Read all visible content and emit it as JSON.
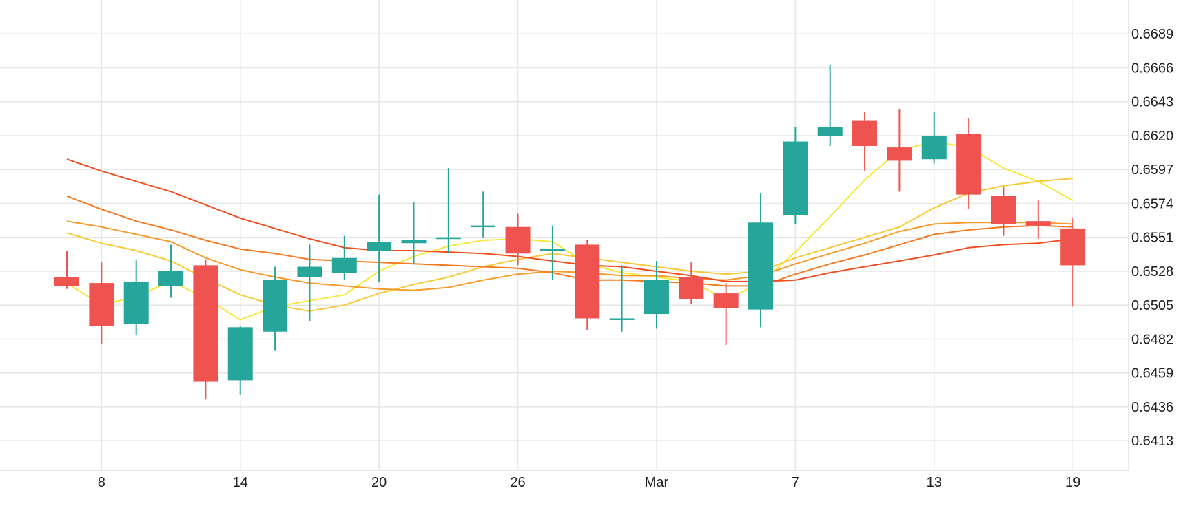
{
  "chart_data": {
    "type": "candlestick",
    "title": "",
    "xlabel": "",
    "ylabel": "",
    "ylim": [
      0.6393,
      0.6712
    ],
    "y_ticks": [
      0.6413,
      0.6436,
      0.6459,
      0.6482,
      0.6505,
      0.6528,
      0.6551,
      0.6574,
      0.6597,
      0.662,
      0.6643,
      0.6666,
      0.6689
    ],
    "y_tick_labels": [
      "0.6413",
      "0.6436",
      "0.6459",
      "0.6482",
      "0.6505",
      "0.6528",
      "0.6551",
      "0.6574",
      "0.6597",
      "0.6620",
      "0.6643",
      "0.6666",
      "0.6689"
    ],
    "x_tick_labels": [
      {
        "label": "8",
        "candle_index": 1
      },
      {
        "label": "14",
        "candle_index": 5
      },
      {
        "label": "20",
        "candle_index": 9
      },
      {
        "label": "26",
        "candle_index": 13
      },
      {
        "label": "Mar",
        "candle_index": 17
      },
      {
        "label": "7",
        "candle_index": 21
      },
      {
        "label": "13",
        "candle_index": 25
      },
      {
        "label": "19",
        "candle_index": 29
      }
    ],
    "grid": true,
    "up_color": "#26a69a",
    "down_color": "#ef5350",
    "candles": [
      {
        "open": 0.6524,
        "high": 0.6542,
        "low": 0.6516,
        "close": 0.6518
      },
      {
        "open": 0.652,
        "high": 0.6534,
        "low": 0.6479,
        "close": 0.6491
      },
      {
        "open": 0.6492,
        "high": 0.6536,
        "low": 0.6485,
        "close": 0.6521
      },
      {
        "open": 0.6518,
        "high": 0.6546,
        "low": 0.651,
        "close": 0.6528
      },
      {
        "open": 0.6532,
        "high": 0.6536,
        "low": 0.6441,
        "close": 0.6453
      },
      {
        "open": 0.6454,
        "high": 0.6491,
        "low": 0.6444,
        "close": 0.649
      },
      {
        "open": 0.6487,
        "high": 0.6531,
        "low": 0.6474,
        "close": 0.6522
      },
      {
        "open": 0.6524,
        "high": 0.6546,
        "low": 0.6494,
        "close": 0.6531
      },
      {
        "open": 0.6527,
        "high": 0.6552,
        "low": 0.6522,
        "close": 0.6537
      },
      {
        "open": 0.6542,
        "high": 0.658,
        "low": 0.6521,
        "close": 0.6548
      },
      {
        "open": 0.6547,
        "high": 0.6575,
        "low": 0.6533,
        "close": 0.6549
      },
      {
        "open": 0.655,
        "high": 0.6598,
        "low": 0.654,
        "close": 0.6551
      },
      {
        "open": 0.6558,
        "high": 0.6582,
        "low": 0.6551,
        "close": 0.6559
      },
      {
        "open": 0.6558,
        "high": 0.6567,
        "low": 0.6532,
        "close": 0.654
      },
      {
        "open": 0.6542,
        "high": 0.6559,
        "low": 0.6522,
        "close": 0.6543
      },
      {
        "open": 0.6546,
        "high": 0.6549,
        "low": 0.6488,
        "close": 0.6496
      },
      {
        "open": 0.6496,
        "high": 0.6532,
        "low": 0.6487,
        "close": 0.6496
      },
      {
        "open": 0.6499,
        "high": 0.6535,
        "low": 0.6489,
        "close": 0.6522
      },
      {
        "open": 0.6524,
        "high": 0.6534,
        "low": 0.6506,
        "close": 0.6509
      },
      {
        "open": 0.6513,
        "high": 0.652,
        "low": 0.6478,
        "close": 0.6503
      },
      {
        "open": 0.6502,
        "high": 0.6581,
        "low": 0.649,
        "close": 0.6561
      },
      {
        "open": 0.6566,
        "high": 0.6626,
        "low": 0.656,
        "close": 0.6616
      },
      {
        "open": 0.662,
        "high": 0.6668,
        "low": 0.6613,
        "close": 0.6626
      },
      {
        "open": 0.663,
        "high": 0.6636,
        "low": 0.6596,
        "close": 0.6613
      },
      {
        "open": 0.6612,
        "high": 0.6638,
        "low": 0.6582,
        "close": 0.6603
      },
      {
        "open": 0.6604,
        "high": 0.6636,
        "low": 0.6601,
        "close": 0.662
      },
      {
        "open": 0.6621,
        "high": 0.6632,
        "low": 0.657,
        "close": 0.658
      },
      {
        "open": 0.6579,
        "high": 0.6585,
        "low": 0.6552,
        "close": 0.656
      },
      {
        "open": 0.6562,
        "high": 0.6576,
        "low": 0.655,
        "close": 0.6559
      },
      {
        "open": 0.6557,
        "high": 0.6564,
        "low": 0.6504,
        "close": 0.6532
      }
    ],
    "series": [
      {
        "color": "#f5e83a",
        "values": [
          0.652,
          0.6505,
          0.6511,
          0.6521,
          0.651,
          0.6495,
          0.6504,
          0.6508,
          0.6512,
          0.6528,
          0.6538,
          0.6545,
          0.6549,
          0.655,
          0.6548,
          0.6533,
          0.6527,
          0.6524,
          0.6521,
          0.6509,
          0.652,
          0.6541,
          0.6565,
          0.659,
          0.661,
          0.6616,
          0.6612,
          0.6598,
          0.6589,
          0.6576
        ]
      },
      {
        "color": "#f7c934",
        "values": [
          0.6554,
          0.6547,
          0.6542,
          0.6535,
          0.6523,
          0.6512,
          0.6505,
          0.6501,
          0.6505,
          0.6513,
          0.6519,
          0.6524,
          0.6531,
          0.6536,
          0.654,
          0.6537,
          0.6534,
          0.6531,
          0.6528,
          0.6526,
          0.6528,
          0.6537,
          0.6544,
          0.6551,
          0.6558,
          0.6571,
          0.6581,
          0.6586,
          0.6589,
          0.6591
        ]
      },
      {
        "color": "#f79a28",
        "values": [
          0.6562,
          0.6558,
          0.6553,
          0.6548,
          0.6537,
          0.6529,
          0.6524,
          0.652,
          0.6518,
          0.6516,
          0.6515,
          0.6517,
          0.6522,
          0.6526,
          0.6528,
          0.6527,
          0.6525,
          0.6525,
          0.6523,
          0.6522,
          0.6525,
          0.6533,
          0.654,
          0.6547,
          0.6555,
          0.656,
          0.6561,
          0.6561,
          0.6561,
          0.656
        ]
      },
      {
        "color": "#f47a20",
        "values": [
          0.6579,
          0.657,
          0.6562,
          0.6556,
          0.6549,
          0.6543,
          0.654,
          0.6536,
          0.6535,
          0.6534,
          0.6533,
          0.6532,
          0.6531,
          0.653,
          0.6527,
          0.6522,
          0.6522,
          0.6521,
          0.652,
          0.6518,
          0.6518,
          0.6526,
          0.6533,
          0.6539,
          0.6546,
          0.6553,
          0.6556,
          0.6558,
          0.6559,
          0.6558
        ]
      },
      {
        "color": "#f04e1e",
        "values": [
          0.6604,
          0.6596,
          0.6589,
          0.6582,
          0.6573,
          0.6564,
          0.6557,
          0.655,
          0.6544,
          0.6542,
          0.6542,
          0.6541,
          0.654,
          0.6538,
          0.6535,
          0.6532,
          0.6531,
          0.6528,
          0.6525,
          0.6521,
          0.6521,
          0.6522,
          0.6527,
          0.6531,
          0.6535,
          0.6539,
          0.6544,
          0.6546,
          0.6547,
          0.655
        ]
      }
    ]
  }
}
